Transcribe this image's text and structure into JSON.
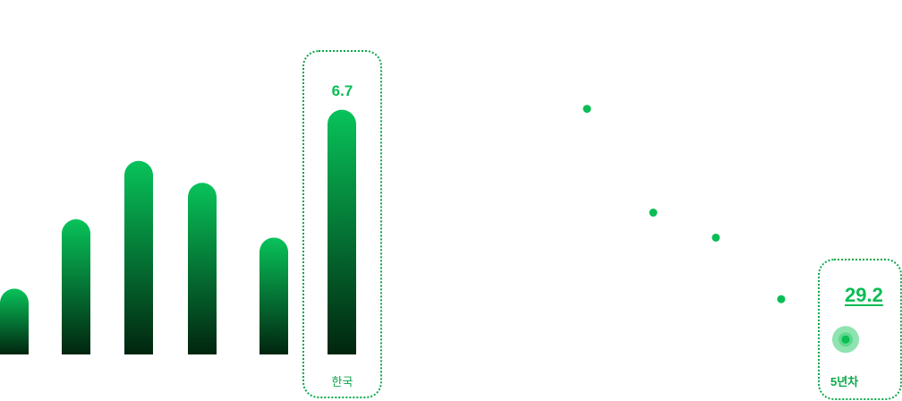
{
  "colors": {
    "accent": "#0bbd55",
    "bar_top": "#08c35a",
    "bar_bottom": "#01250f",
    "halo": "#8fe3b0"
  },
  "chart_data": [
    {
      "type": "bar",
      "categories": [
        "",
        "",
        "",
        "",
        "",
        "한국"
      ],
      "values": [
        1.8,
        3.7,
        5.3,
        4.7,
        3.2,
        6.7
      ],
      "ylim": [
        0,
        7.5
      ],
      "highlight": {
        "category": "한국",
        "value_label": "6.7"
      }
    },
    {
      "type": "scatter",
      "x": [
        1,
        2,
        3,
        4,
        5
      ],
      "y": [
        41.2,
        35.8,
        34.5,
        31.3,
        29.2
      ],
      "ylim": [
        26,
        45
      ],
      "highlight": {
        "x_label": "5년차",
        "value_label": "29.2"
      }
    }
  ]
}
